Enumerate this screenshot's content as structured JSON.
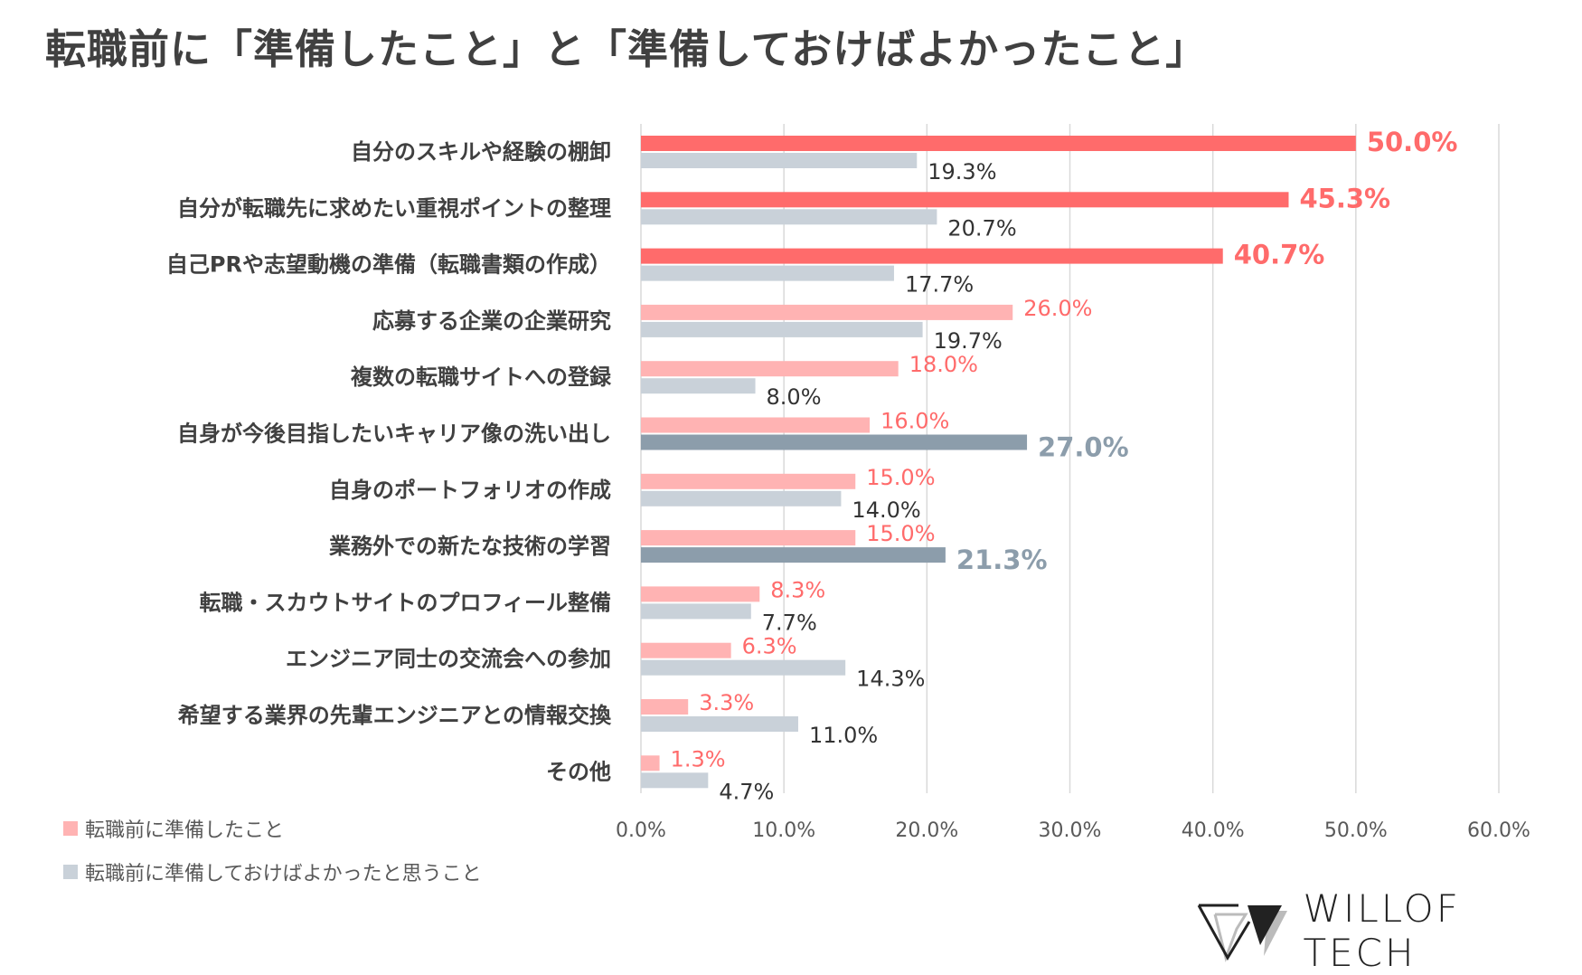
{
  "title": "転職前に「準備したこと」と「準備しておけばよかったこと」",
  "brand": "WILLOF TECH",
  "colors": {
    "prepared_highlight": "#ff6b6b",
    "prepared": "#ffb3b3",
    "wish_highlight": "#8c9dab",
    "wish": "#c9d1d9",
    "grid": "#d9d9d9"
  },
  "chart_data": {
    "type": "bar",
    "orientation": "horizontal",
    "title": "転職前に「準備したこと」と「準備しておけばよかったこと」",
    "xlim": [
      0,
      60
    ],
    "xticks": [
      "0.0%",
      "10.0%",
      "20.0%",
      "30.0%",
      "40.0%",
      "50.0%",
      "60.0%"
    ],
    "grid": true,
    "legend_position": "bottom-left",
    "categories": [
      "自分のスキルや経験の棚卸",
      "自分が転職先に求めたい重視ポイントの整理",
      "自己PRや志望動機の準備（転職書類の作成）",
      "応募する企業の企業研究",
      "複数の転職サイトへの登録",
      "自身が今後目指したいキャリア像の洗い出し",
      "自身のポートフォリオの作成",
      "業務外での新たな技術の学習",
      "転職・スカウトサイトのプロフィール整備",
      "エンジニア同士の交流会への参加",
      "希望する業界の先輩エンジニアとの情報交換",
      "その他"
    ],
    "series": [
      {
        "name": "転職前に準備したこと",
        "values": [
          50.0,
          45.3,
          40.7,
          26.0,
          18.0,
          16.0,
          15.0,
          15.0,
          8.3,
          6.3,
          3.3,
          1.3
        ],
        "labels": [
          "50.0%",
          "45.3%",
          "40.7%",
          "26.0%",
          "18.0%",
          "16.0%",
          "15.0%",
          "15.0%",
          "8.3%",
          "6.3%",
          "3.3%",
          "1.3%"
        ],
        "highlight": [
          true,
          true,
          true,
          false,
          false,
          false,
          false,
          false,
          false,
          false,
          false,
          false
        ]
      },
      {
        "name": "転職前に準備しておけばよかったと思うこと",
        "values": [
          19.3,
          20.7,
          17.7,
          19.7,
          8.0,
          27.0,
          14.0,
          21.3,
          7.7,
          14.3,
          11.0,
          4.7
        ],
        "labels": [
          "19.3%",
          "20.7%",
          "17.7%",
          "19.7%",
          "8.0%",
          "27.0%",
          "14.0%",
          "21.3%",
          "7.7%",
          "14.3%",
          "11.0%",
          "4.7%"
        ],
        "highlight": [
          false,
          false,
          false,
          false,
          false,
          true,
          false,
          true,
          false,
          false,
          false,
          false
        ]
      }
    ]
  }
}
